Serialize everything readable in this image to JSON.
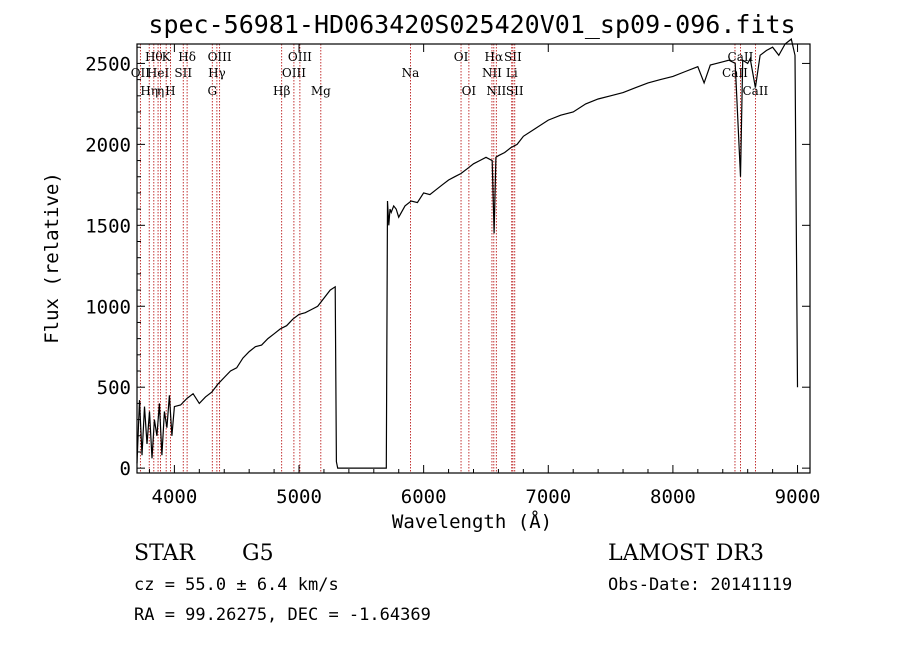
{
  "title": "spec-56981-HD063420S025420V01_sp09-096.fits",
  "info": {
    "class": "STAR",
    "subclass": "G5",
    "survey": "LAMOST DR3",
    "cz": "cz = 55.0 ± 6.4 km/s",
    "obs_date": "Obs-Date: 20141119",
    "coords": "RA =  99.26275, DEC =  -1.64369"
  },
  "chart_data": {
    "type": "line",
    "title": "spec-56981-HD063420S025420V01_sp09-096.fits",
    "xlabel": "Wavelength (Å)",
    "ylabel": "Flux (relative)",
    "xlim": [
      3700,
      9100
    ],
    "ylim": [
      -30,
      2620
    ],
    "xticks": [
      4000,
      5000,
      6000,
      7000,
      8000,
      9000
    ],
    "xtick_labels": [
      "4000",
      "5000",
      "6000",
      "7000",
      "8000",
      "9000"
    ],
    "yticks": [
      0,
      500,
      1000,
      1500,
      2000,
      2500
    ],
    "ytick_labels": [
      "0",
      "500",
      "1000",
      "1500",
      "2000",
      "2500"
    ],
    "grid": false,
    "series": [
      {
        "x": [
          3700,
          3720,
          3740,
          3760,
          3780,
          3800,
          3820,
          3840,
          3860,
          3880,
          3900,
          3920,
          3940,
          3960,
          3980,
          4000,
          4050,
          4100,
          4150,
          4200,
          4250,
          4300,
          4350,
          4400,
          4450,
          4500,
          4550,
          4600,
          4650,
          4700,
          4750,
          4800,
          4850,
          4900,
          4950,
          5000,
          5050,
          5100,
          5150,
          5200,
          5250,
          5290,
          5300,
          5310,
          5700,
          5710,
          5720,
          5730,
          5740,
          5760,
          5780,
          5800,
          5850,
          5900,
          5950,
          6000,
          6050,
          6100,
          6150,
          6200,
          6250,
          6300,
          6350,
          6400,
          6450,
          6500,
          6550,
          6565,
          6580,
          6600,
          6650,
          6700,
          6750,
          6800,
          6900,
          7000,
          7100,
          7200,
          7300,
          7400,
          7500,
          7600,
          7700,
          7800,
          7900,
          8000,
          8100,
          8200,
          8250,
          8300,
          8350,
          8400,
          8450,
          8500,
          8542,
          8560,
          8600,
          8620,
          8662,
          8700,
          8750,
          8800,
          8850,
          8900,
          8950,
          8980,
          9000
        ],
        "y": [
          30,
          420,
          80,
          380,
          150,
          350,
          60,
          300,
          200,
          400,
          80,
          350,
          250,
          450,
          200,
          380,
          390,
          430,
          460,
          400,
          440,
          470,
          520,
          560,
          600,
          620,
          680,
          720,
          750,
          760,
          800,
          830,
          860,
          880,
          920,
          950,
          960,
          980,
          1000,
          1050,
          1100,
          1120,
          40,
          0,
          0,
          1650,
          1500,
          1600,
          1580,
          1620,
          1600,
          1550,
          1620,
          1650,
          1640,
          1700,
          1690,
          1720,
          1750,
          1780,
          1800,
          1820,
          1850,
          1880,
          1900,
          1920,
          1900,
          1450,
          1920,
          1930,
          1950,
          1980,
          2000,
          2050,
          2100,
          2150,
          2180,
          2200,
          2250,
          2280,
          2300,
          2320,
          2350,
          2380,
          2400,
          2420,
          2450,
          2480,
          2380,
          2490,
          2500,
          2510,
          2520,
          2500,
          1800,
          2520,
          2500,
          2530,
          2350,
          2550,
          2580,
          2600,
          2550,
          2620,
          2650,
          2550,
          500
        ]
      }
    ],
    "line_marks": [
      {
        "wl": 3727,
        "label": "OII",
        "row": 2
      },
      {
        "wl": 3798,
        "label": "Hη",
        "row": 3
      },
      {
        "wl": 3835,
        "label": "Hθ",
        "row": 1
      },
      {
        "wl": 3869,
        "label": "HeI",
        "row": 2
      },
      {
        "wl": 3889,
        "label": "η",
        "row": 3
      },
      {
        "wl": 3934,
        "label": "K",
        "row": 1
      },
      {
        "wl": 3968,
        "label": "H",
        "row": 3
      },
      {
        "wl": 4071,
        "label": "SII",
        "row": 2
      },
      {
        "wl": 4102,
        "label": "Hδ",
        "row": 1
      },
      {
        "wl": 4304,
        "label": "G",
        "row": 3
      },
      {
        "wl": 4341,
        "label": "Hγ",
        "row": 2
      },
      {
        "wl": 4363,
        "label": "OIII",
        "row": 1
      },
      {
        "wl": 4861,
        "label": "Hβ",
        "row": 3
      },
      {
        "wl": 4959,
        "label": "OIII",
        "row": 2
      },
      {
        "wl": 5007,
        "label": "OIII",
        "row": 1
      },
      {
        "wl": 5175,
        "label": "Mg",
        "row": 3
      },
      {
        "wl": 5894,
        "label": "Na",
        "row": 2
      },
      {
        "wl": 6300,
        "label": "OI",
        "row": 1
      },
      {
        "wl": 6363,
        "label": "OI",
        "row": 3
      },
      {
        "wl": 6548,
        "label": "NII",
        "row": 2
      },
      {
        "wl": 6563,
        "label": "Hα",
        "row": 1
      },
      {
        "wl": 6583,
        "label": "NII",
        "row": 3
      },
      {
        "wl": 6707,
        "label": "Li",
        "row": 2
      },
      {
        "wl": 6716,
        "label": "SII",
        "row": 1
      },
      {
        "wl": 6731,
        "label": "SII",
        "row": 3
      },
      {
        "wl": 8498,
        "label": "CaII",
        "row": 2
      },
      {
        "wl": 8542,
        "label": "CaII",
        "row": 1
      },
      {
        "wl": 8662,
        "label": "CaII",
        "row": 3
      }
    ],
    "colors": {
      "spectrum": "#000000",
      "line_marks": "#b30000",
      "axes": "#000000"
    }
  }
}
